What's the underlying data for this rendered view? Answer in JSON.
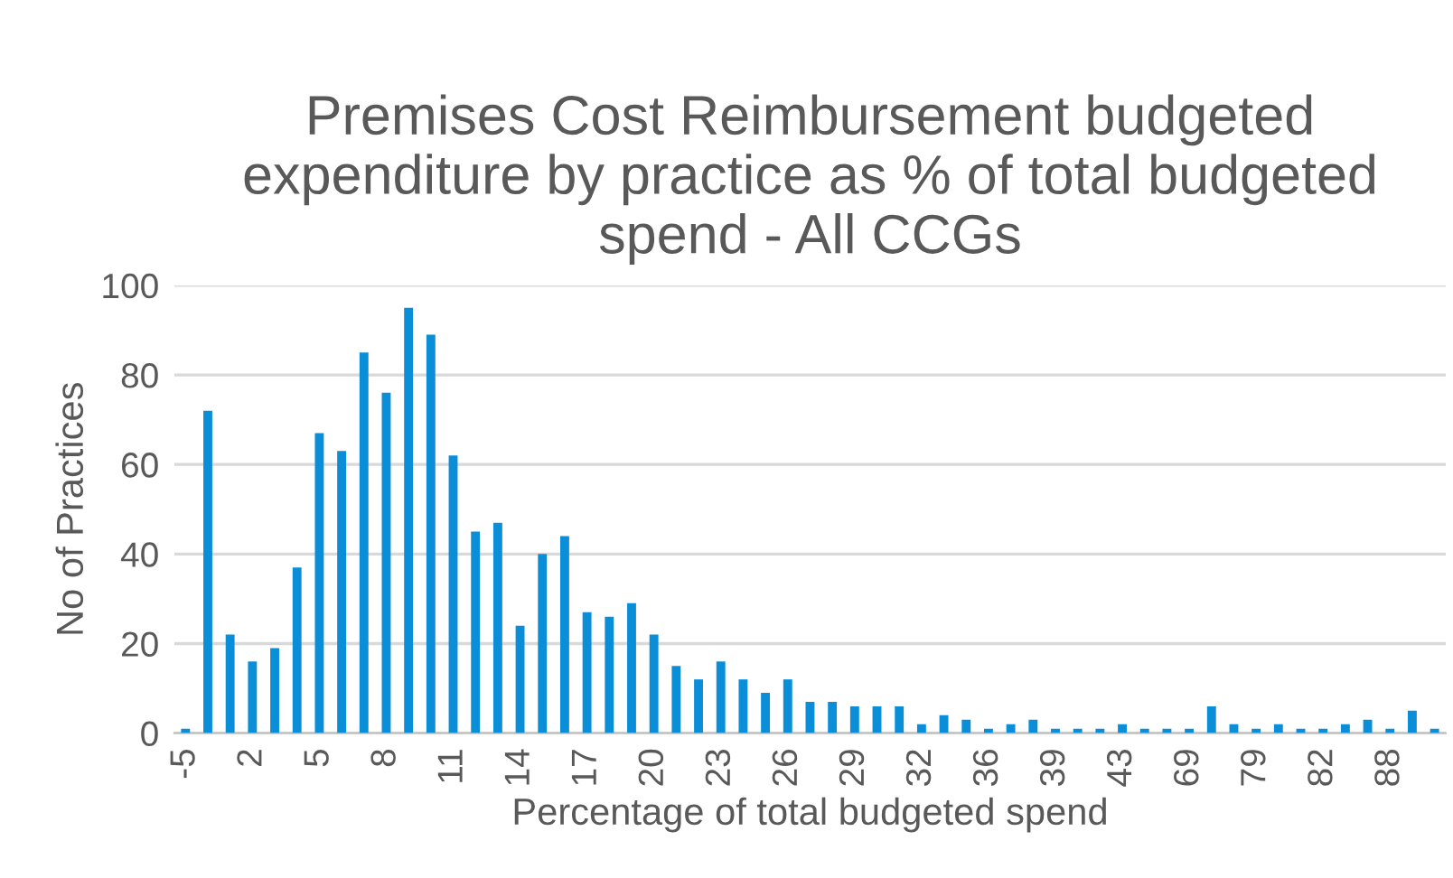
{
  "chart_data": {
    "type": "bar",
    "title": "Premises Cost Reimbursement budgeted expenditure by practice as % of total budgeted spend - All CCGs",
    "xlabel": "Percentage of total budgeted spend",
    "ylabel": "No of Practices",
    "categories": [
      "-5",
      null,
      null,
      "2",
      null,
      null,
      "5",
      null,
      null,
      "8",
      null,
      null,
      "11",
      null,
      null,
      "14",
      null,
      null,
      "17",
      null,
      null,
      "20",
      null,
      null,
      "23",
      null,
      null,
      "26",
      null,
      null,
      "29",
      null,
      null,
      "32",
      null,
      null,
      "36",
      null,
      null,
      "39",
      null,
      null,
      "43",
      null,
      null,
      "69",
      null,
      null,
      "79",
      null,
      null,
      "82",
      null,
      null,
      "88",
      null,
      null
    ],
    "values": [
      1,
      72,
      22,
      16,
      19,
      37,
      67,
      63,
      85,
      76,
      95,
      89,
      62,
      45,
      47,
      24,
      40,
      44,
      27,
      26,
      29,
      22,
      15,
      12,
      16,
      12,
      9,
      12,
      7,
      7,
      6,
      6,
      6,
      2,
      4,
      3,
      1,
      2,
      3,
      1,
      1,
      1,
      2,
      1,
      1,
      1,
      6,
      2,
      1,
      2,
      1,
      1,
      2,
      3,
      1,
      5,
      1
    ],
    "color": "#0b8ed8",
    "ylim": [
      0,
      100
    ],
    "yticks": [
      0,
      20,
      40,
      60,
      80,
      100
    ],
    "grid": "y",
    "legend": false
  }
}
